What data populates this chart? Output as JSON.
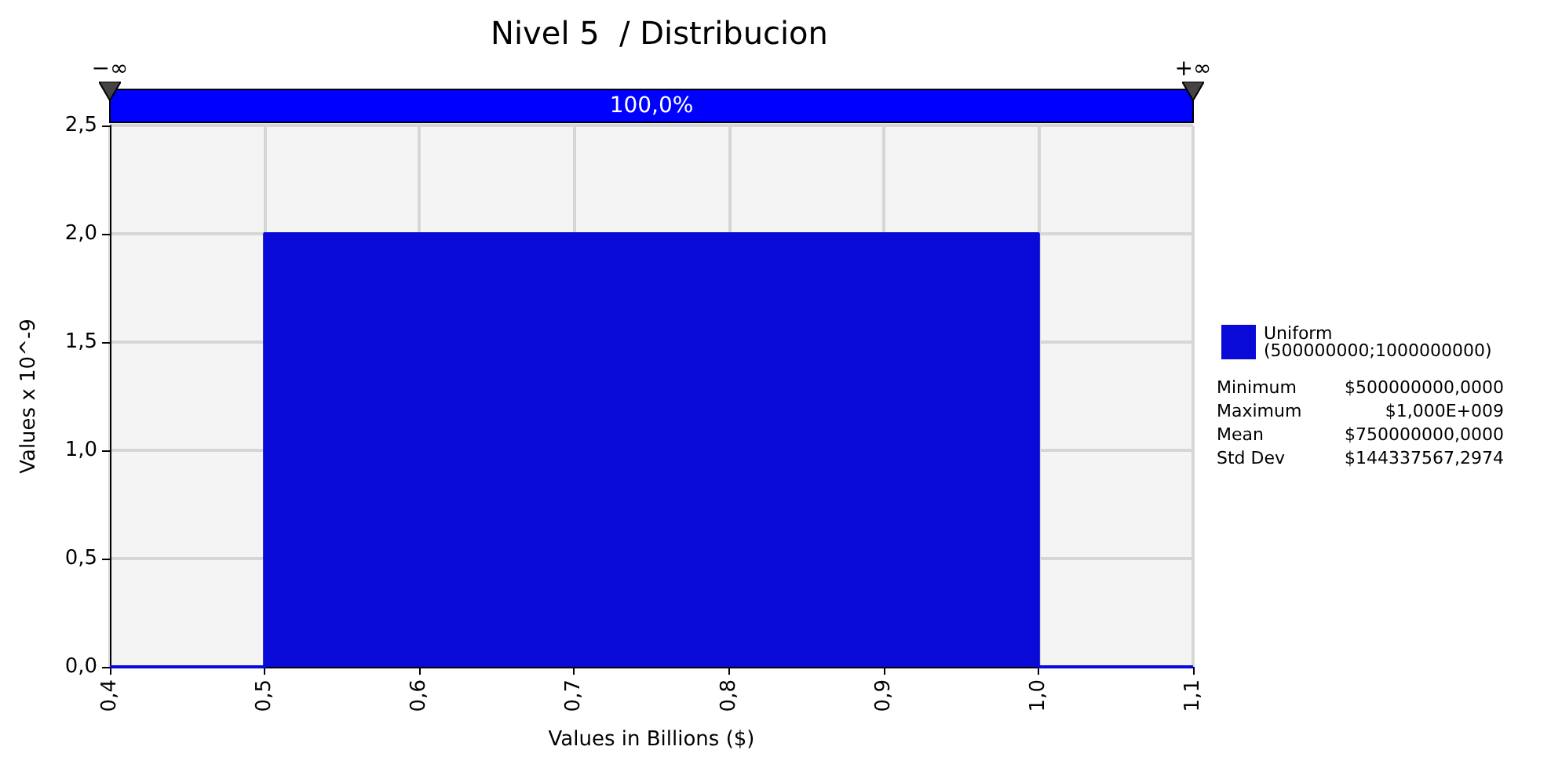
{
  "chart_data": {
    "type": "area",
    "title": "Nivel 5  / Distribucion",
    "xlabel": "Values in Billions ($)",
    "ylabel": "Values x 10^-9",
    "x": [
      0.4,
      0.5,
      0.5,
      1.0,
      1.0,
      1.1
    ],
    "series": [
      {
        "name": "Uniform (500000000;1000000000)",
        "color": "#0a0ad8",
        "values": [
          0,
          0,
          2,
          2,
          0,
          0
        ]
      }
    ],
    "xlim": [
      0.4,
      1.1
    ],
    "xticks": [
      {
        "value": 0.4,
        "label": "0,4"
      },
      {
        "value": 0.5,
        "label": "0,5"
      },
      {
        "value": 0.6,
        "label": "0,6"
      },
      {
        "value": 0.7,
        "label": "0,7"
      },
      {
        "value": 0.8,
        "label": "0,8"
      },
      {
        "value": 0.9,
        "label": "0,9"
      },
      {
        "value": 1.0,
        "label": "1,0"
      },
      {
        "value": 1.1,
        "label": "1,1"
      }
    ],
    "ylim": [
      0,
      2.5
    ],
    "yticks": [
      {
        "value": 0,
        "label": "0,0"
      },
      {
        "value": 0.5,
        "label": "0,5"
      },
      {
        "value": 1.0,
        "label": "1,0"
      },
      {
        "value": 1.5,
        "label": "1,5"
      },
      {
        "value": 2.0,
        "label": "2,0"
      },
      {
        "value": 2.5,
        "label": "2,5"
      }
    ],
    "annotations": [
      "−∞",
      "+∞",
      "100,0%",
      "Minimum",
      "$500000000,0000",
      "Maximum",
      "$1,000E+009",
      "Mean",
      "$750000000,0000",
      "Std Dev",
      "$144337567,2974"
    ],
    "grid": true,
    "legend": "right"
  }
}
